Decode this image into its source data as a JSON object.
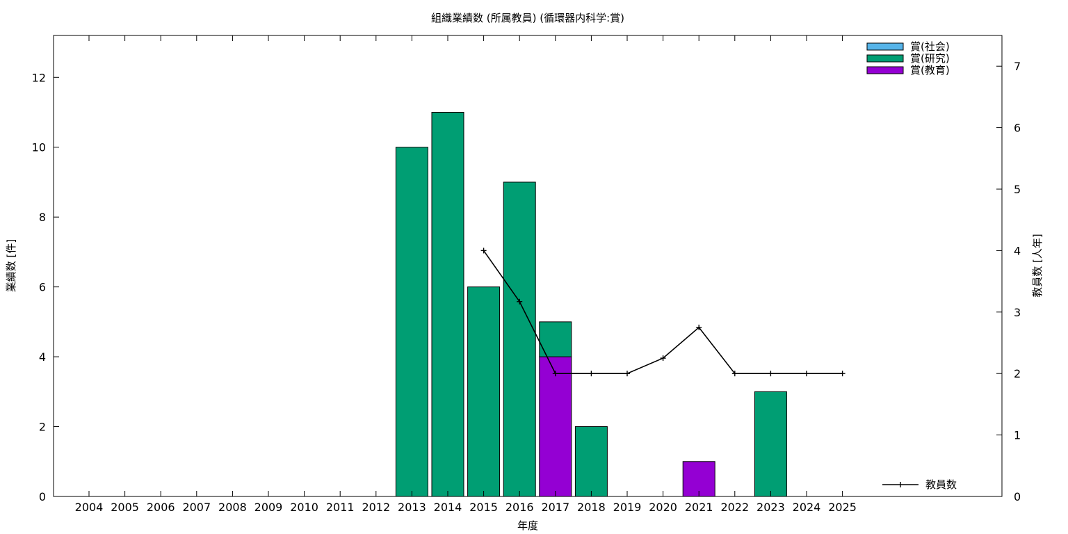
{
  "chart_data": {
    "type": "bar",
    "title": "組織業績数 (所属教員) (循環器内科学:賞)",
    "xlabel": "年度",
    "ylabel": "業績数 [件]",
    "y2label": "教員数 [人年]",
    "stacked": true,
    "categories": [
      "2004",
      "2005",
      "2006",
      "2007",
      "2008",
      "2009",
      "2010",
      "2011",
      "2012",
      "2013",
      "2014",
      "2015",
      "2016",
      "2017",
      "2018",
      "2019",
      "2020",
      "2021",
      "2022",
      "2023",
      "2024",
      "2025"
    ],
    "ylim": [
      0,
      13.2
    ],
    "yticks": [
      0,
      2,
      4,
      6,
      8,
      10,
      12
    ],
    "y2lim": [
      0,
      7.5
    ],
    "y2ticks": [
      0,
      1,
      2,
      3,
      4,
      5,
      6,
      7
    ],
    "series": [
      {
        "name": "賞(教育)",
        "color": "#9400d3",
        "values": [
          0,
          0,
          0,
          0,
          0,
          0,
          0,
          0,
          0,
          0,
          0,
          0,
          0,
          4,
          0,
          0,
          0,
          1,
          0,
          0,
          0,
          0
        ]
      },
      {
        "name": "賞(研究)",
        "color": "#009e73",
        "values": [
          0,
          0,
          0,
          0,
          0,
          0,
          0,
          0,
          0,
          10,
          11,
          6,
          9,
          1,
          2,
          0,
          0,
          0,
          0,
          3,
          0,
          0
        ]
      },
      {
        "name": "賞(社会)",
        "color": "#56b4e9",
        "values": [
          0,
          0,
          0,
          0,
          0,
          0,
          0,
          0,
          0,
          0,
          0,
          0,
          0,
          0,
          0,
          0,
          0,
          0,
          0,
          0,
          0,
          0
        ]
      }
    ],
    "legend_order": [
      "賞(社会)",
      "賞(研究)",
      "賞(教育)"
    ],
    "legend": "top-right",
    "line": {
      "name": "教員数",
      "color": "#000000",
      "axis": "y2",
      "x": [
        "2015",
        "2016",
        "2017",
        "2018",
        "2019",
        "2020",
        "2021",
        "2022",
        "2023",
        "2024",
        "2025"
      ],
      "values": [
        4,
        3.17,
        2,
        2,
        2,
        2.25,
        2.75,
        2,
        2,
        2,
        2
      ]
    },
    "line_legend": "bottom-right",
    "grid": false
  }
}
